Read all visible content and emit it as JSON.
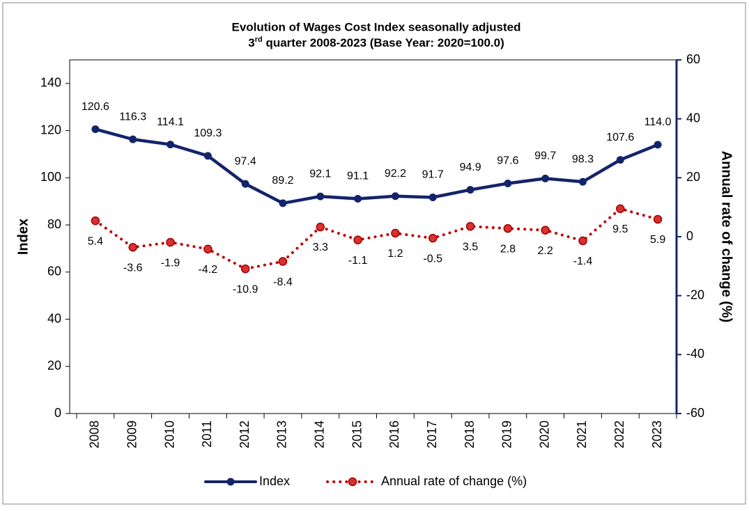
{
  "chart_data": {
    "type": "line",
    "title": "Evolution of Wages Cost Index seasonally adjusted",
    "subtitle": [
      "3",
      "rd",
      " quarter 2008-2023 (Base Year: 2020=100.0)"
    ],
    "y_label": "Index",
    "y2_label": "Annual rate of change (%)",
    "categories": [
      "2008",
      "2009",
      "2010",
      "2011",
      "2012",
      "2013",
      "2014",
      "2015",
      "2016",
      "2017",
      "2018",
      "2019",
      "2020",
      "2021",
      "2022",
      "2023"
    ],
    "series": [
      {
        "name": "Index",
        "color": "#14246b",
        "style": "solid",
        "values": [
          120.6,
          116.3,
          114.1,
          109.3,
          97.4,
          89.2,
          92.1,
          91.1,
          92.2,
          91.7,
          94.9,
          97.6,
          99.7,
          98.3,
          107.6,
          114.0
        ],
        "value_labels": [
          "120.6",
          "116.3",
          "114.1",
          "109.3",
          "97.4",
          "89.2",
          "92.1",
          "91.1",
          "92.2",
          "91.7",
          "94.9",
          "97.6",
          "99.7",
          "98.3",
          "107.6",
          "114.0"
        ]
      },
      {
        "name": "Annual rate of change (%)",
        "color": "#c00000",
        "style": "dotted",
        "axis": "y2",
        "values": [
          5.4,
          -3.6,
          -1.9,
          -4.2,
          -10.9,
          -8.4,
          3.3,
          -1.1,
          1.2,
          -0.5,
          3.5,
          2.8,
          2.2,
          -1.4,
          9.5,
          5.9
        ]
      }
    ],
    "ylim": [
      0,
      150
    ],
    "yticks": [
      0,
      20,
      40,
      60,
      80,
      100,
      120,
      140
    ],
    "y2lim": [
      -60,
      60
    ],
    "y2ticks": [
      -60,
      -40,
      -20,
      0,
      20,
      40,
      60
    ],
    "grid": false,
    "legend": "bottom"
  }
}
